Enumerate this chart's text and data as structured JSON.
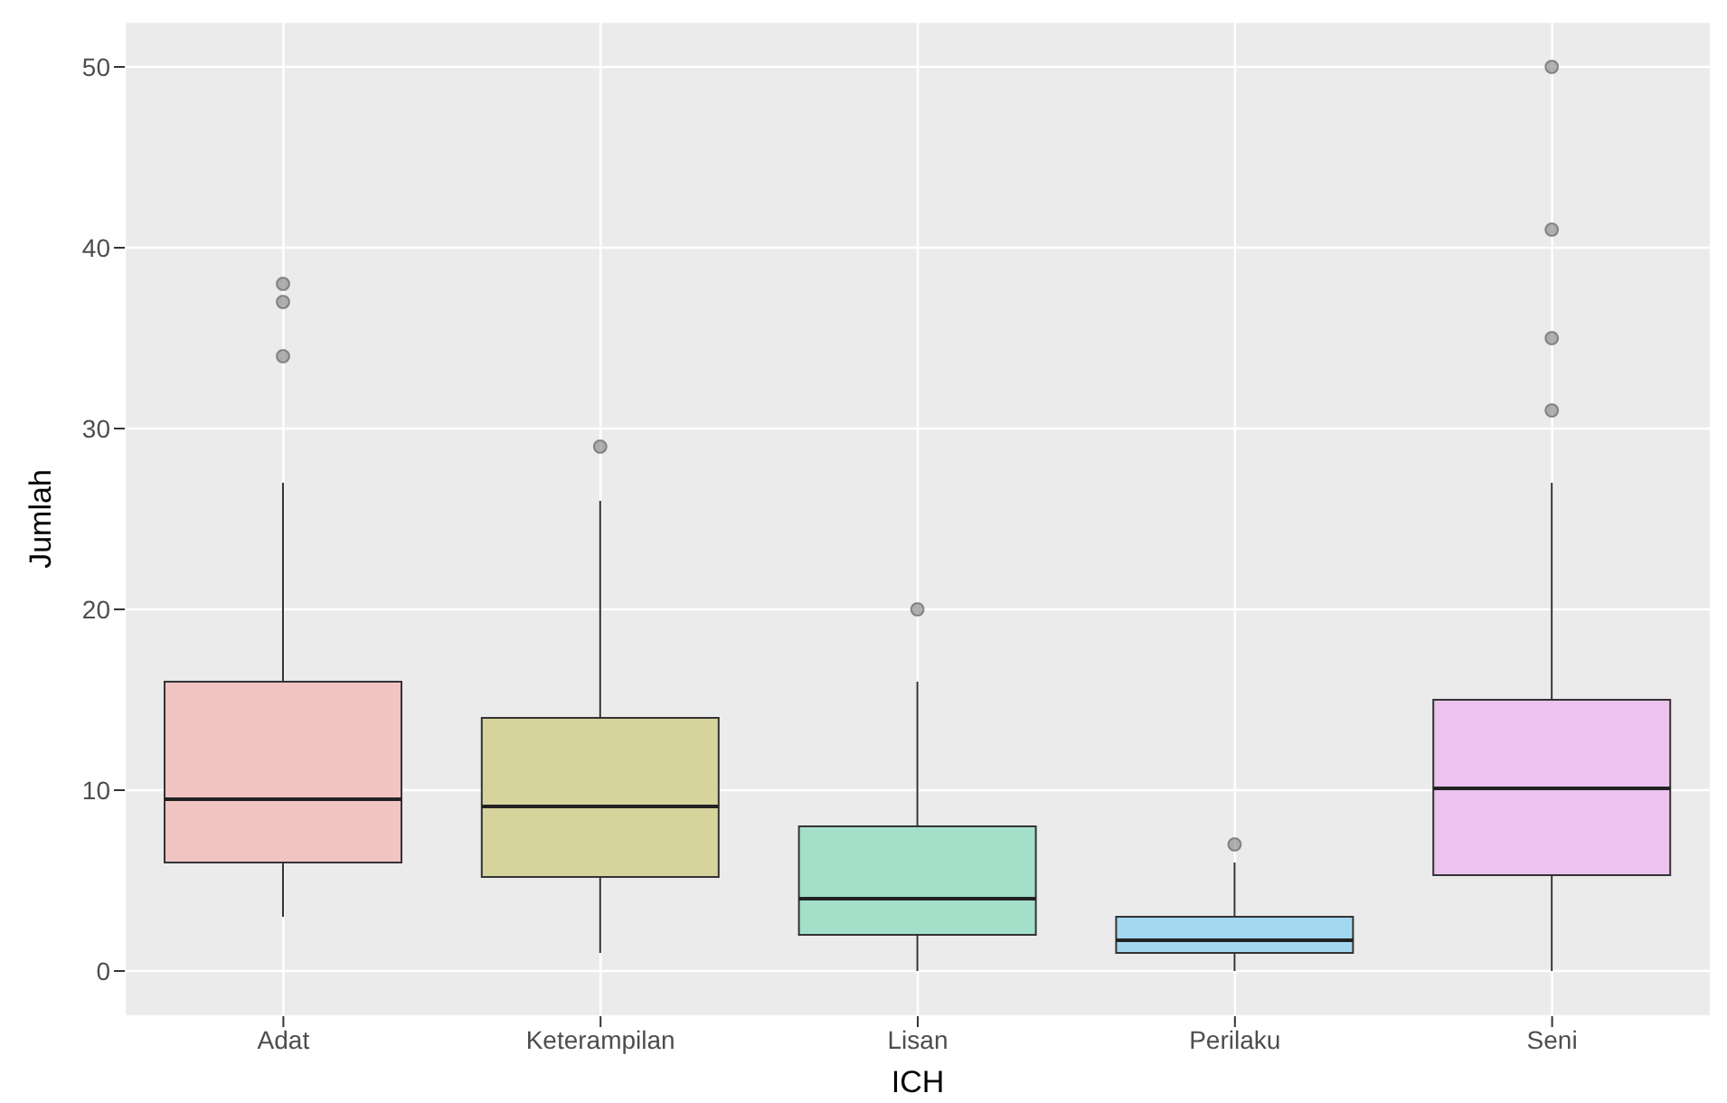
{
  "chart_data": {
    "type": "box",
    "xlabel": "ICH",
    "ylabel": "Jumlah",
    "categories": [
      "Adat",
      "Keterampilan",
      "Lisan",
      "Perilaku",
      "Seni"
    ],
    "colors": [
      "#f0c4c2",
      "#d6d39c",
      "#a4e0c9",
      "#a3d7ef",
      "#ebc3ee"
    ],
    "boxes": [
      {
        "low": 3,
        "q1": 6,
        "median": 9.5,
        "q3": 16,
        "high": 27,
        "outliers": [
          34,
          37,
          38
        ]
      },
      {
        "low": 1,
        "q1": 5.2,
        "median": 9.1,
        "q3": 14,
        "high": 26,
        "outliers": [
          29
        ]
      },
      {
        "low": 0,
        "q1": 2,
        "median": 4,
        "q3": 8,
        "high": 16,
        "outliers": [
          20
        ]
      },
      {
        "low": 0,
        "q1": 1,
        "median": 1.7,
        "q3": 3,
        "high": 6,
        "outliers": [
          7
        ]
      },
      {
        "low": 0,
        "q1": 5.3,
        "median": 10.1,
        "q3": 15,
        "high": 27,
        "outliers": [
          31,
          35,
          41,
          50
        ]
      }
    ],
    "ylim": [
      -2.5,
      52.5
    ],
    "yticks": [
      0,
      10,
      20,
      30,
      40,
      50
    ],
    "grid": true
  }
}
